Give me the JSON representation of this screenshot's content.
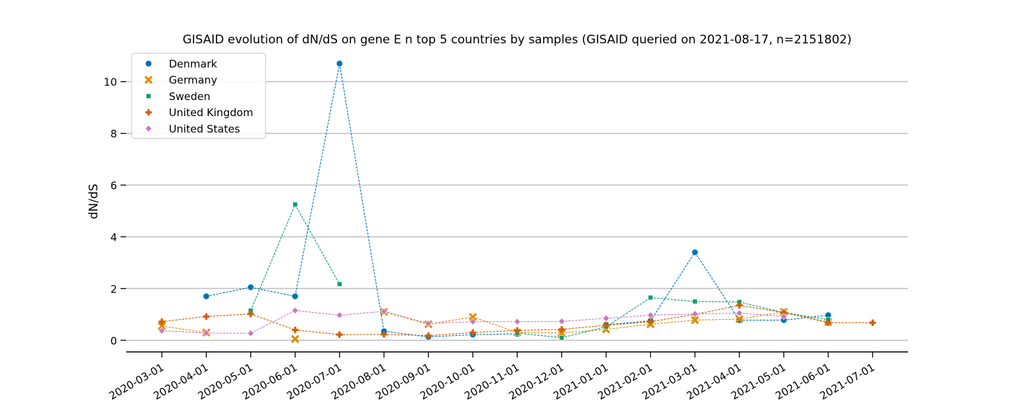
{
  "chart_data": {
    "type": "line",
    "title": "GISAID evolution of dN/dS on gene E n top 5 countries by samples (GISAID queried on 2021-08-17, n=2151802)",
    "xlabel": "",
    "ylabel": "dN/dS",
    "x": [
      "2020-03-01",
      "2020-04-01",
      "2020-05-01",
      "2020-06-01",
      "2020-07-01",
      "2020-08-01",
      "2020-09-01",
      "2020-10-01",
      "2020-11-01",
      "2020-12-01",
      "2021-01-01",
      "2021-02-01",
      "2021-03-01",
      "2021-04-01",
      "2021-05-01",
      "2021-06-01",
      "2021-07-01"
    ],
    "yticks": [
      "0",
      "2",
      "4",
      "6",
      "8",
      "10"
    ],
    "ylim": [
      -0.45,
      11.1
    ],
    "grid": "horizontal",
    "legend_position": "top-left",
    "series": [
      {
        "name": "Denmark",
        "color": "#0173b2",
        "marker": "circle",
        "values": [
          null,
          1.7,
          2.05,
          1.7,
          10.7,
          0.35,
          0.13,
          0.22,
          0.25,
          null,
          0.6,
          0.75,
          3.4,
          0.78,
          0.78,
          0.97,
          null
        ]
      },
      {
        "name": "Germany",
        "color": "#de8f05",
        "marker": "x",
        "values": [
          0.55,
          0.3,
          null,
          0.05,
          null,
          1.1,
          0.62,
          0.9,
          0.3,
          0.28,
          0.42,
          0.62,
          0.78,
          0.82,
          1.1,
          0.7,
          null
        ]
      },
      {
        "name": "Sweden",
        "color": "#029e73",
        "marker": "square",
        "values": [
          null,
          null,
          1.15,
          5.25,
          2.17,
          null,
          null,
          null,
          0.28,
          0.1,
          0.52,
          1.65,
          1.5,
          1.48,
          1.07,
          0.8,
          null
        ]
      },
      {
        "name": "United Kingdom",
        "color": "#d55e00",
        "marker": "plus",
        "values": [
          0.72,
          0.92,
          1.02,
          0.4,
          0.22,
          0.23,
          0.18,
          0.3,
          0.38,
          0.42,
          0.58,
          0.72,
          1.0,
          1.35,
          1.07,
          0.68,
          0.68
        ]
      },
      {
        "name": "United States",
        "color": "#cc78bc",
        "marker": "diamond",
        "values": [
          0.37,
          0.28,
          0.27,
          1.15,
          0.97,
          1.12,
          0.65,
          0.72,
          0.72,
          0.73,
          0.85,
          0.97,
          1.02,
          1.05,
          0.92,
          null,
          null
        ]
      }
    ]
  }
}
